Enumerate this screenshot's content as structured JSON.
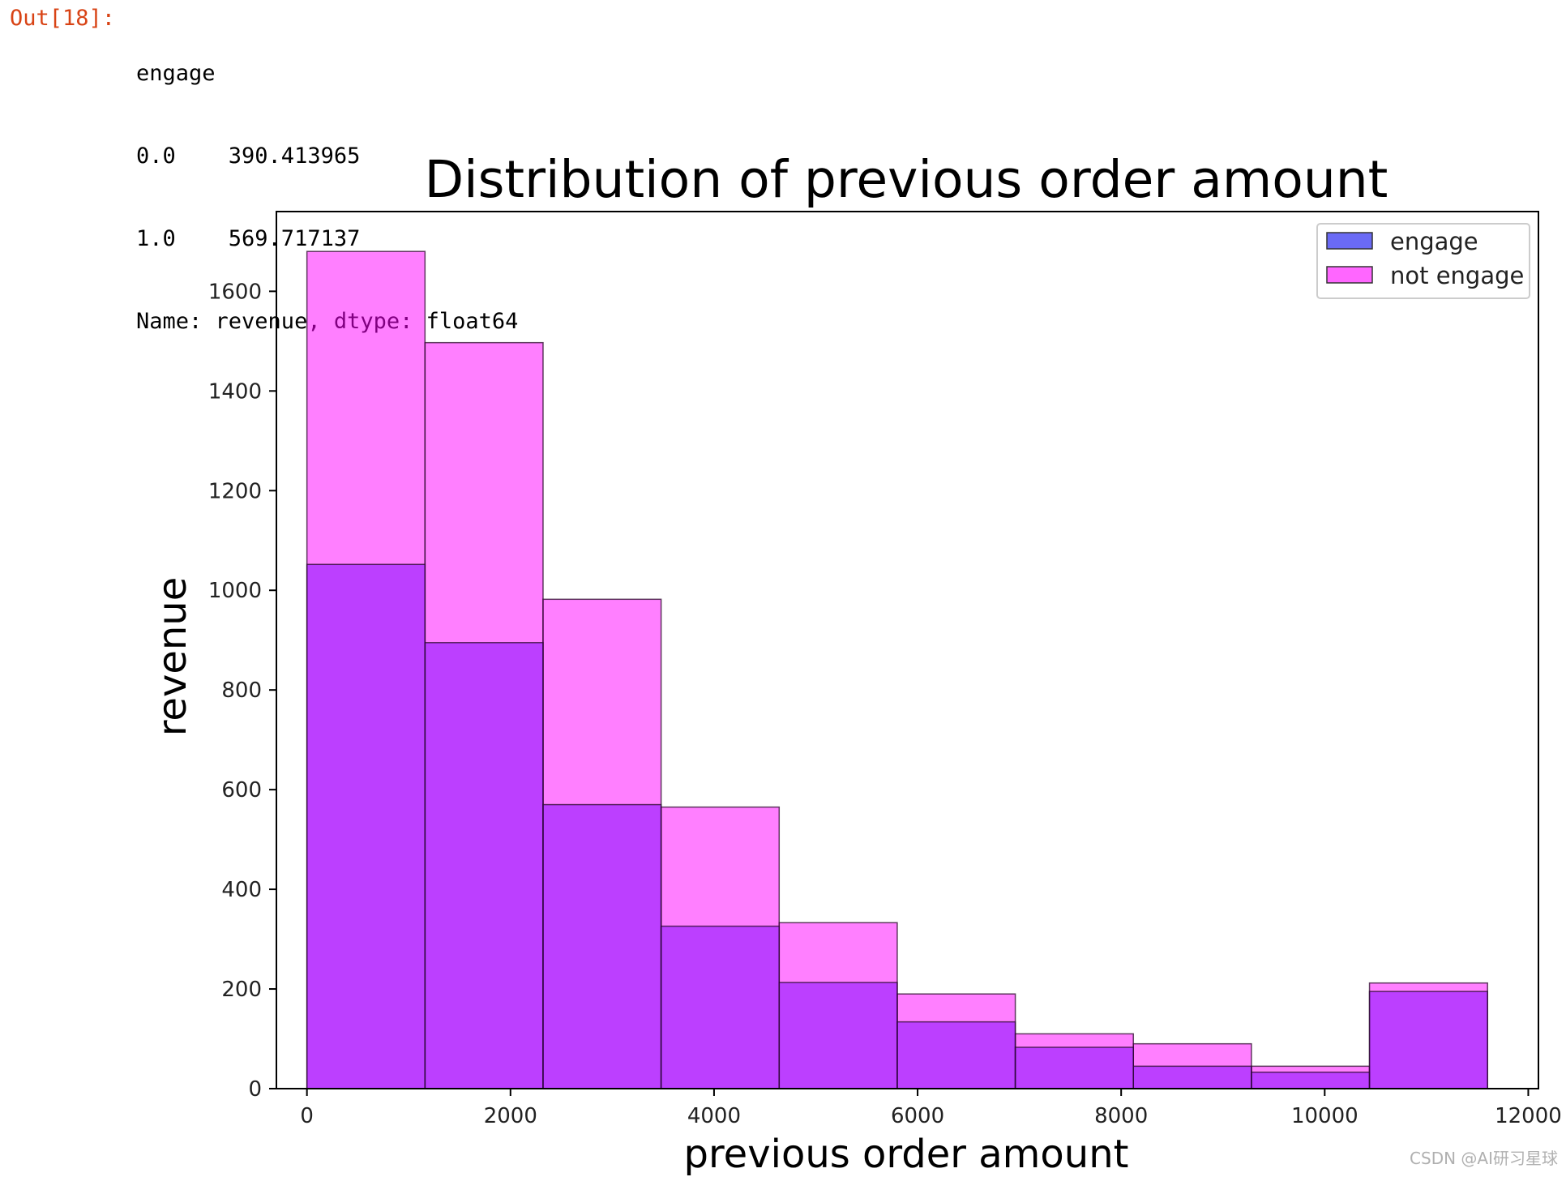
{
  "cell_output": {
    "prompt": "Out[18]:",
    "lines": [
      "engage",
      "0.0    390.413965",
      "1.0    569.717137",
      "Name: revenue, dtype: float64"
    ]
  },
  "watermark": "CSDN @AI研习星球",
  "colors": {
    "engage": "#7a00ff",
    "not_engage": "#ff00ff",
    "legend_engage": "#6a6af5",
    "legend_not_engage": "#ff66ff",
    "edge": "#2a0a2a"
  },
  "chart_data": {
    "type": "bar",
    "title": "Distribution of previous order amount",
    "xlabel": "previous order amount",
    "ylabel": "revenue",
    "xlim": [
      -300,
      12100
    ],
    "ylim": [
      0,
      1760
    ],
    "xticks": [
      "0",
      "2000",
      "4000",
      "6000",
      "8000",
      "10000",
      "12000"
    ],
    "yticks": [
      "0",
      "200",
      "400",
      "600",
      "800",
      "1000",
      "1200",
      "1400",
      "1600"
    ],
    "bin_edges": [
      0,
      1160,
      2320,
      3480,
      4640,
      5800,
      6960,
      8120,
      9280,
      10440,
      11600
    ],
    "series": [
      {
        "name": "not engage",
        "values": [
          1680,
          1497,
          982,
          565,
          333,
          190,
          110,
          90,
          45,
          212
        ]
      },
      {
        "name": "engage",
        "values": [
          1052,
          895,
          570,
          326,
          213,
          134,
          83,
          45,
          33,
          195
        ]
      }
    ],
    "legend": {
      "placement": "top-right",
      "entries": [
        "engage",
        "not engage"
      ]
    },
    "grid": false
  }
}
